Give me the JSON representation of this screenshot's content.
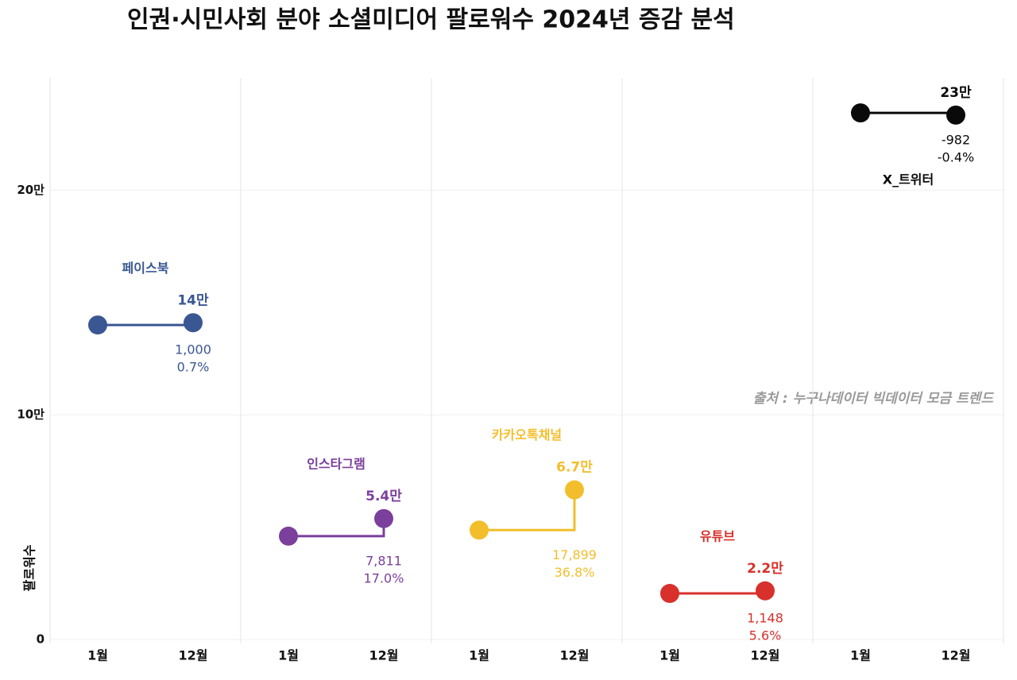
{
  "chart_data": {
    "type": "dumbbell-step",
    "title": "인권·시민사회 분야 소셜미디어 팔로워수 2024년 증감 분석",
    "source": "출처 : 누구나데이터 빅데이터 모금 트렌드",
    "ylabel": "팔로워수",
    "categories": [
      "1월",
      "12월"
    ],
    "ylim": [
      0,
      250000
    ],
    "yticks": [
      0,
      {
        "value": 100000,
        "label": "10만"
      },
      {
        "value": 200000,
        "label": "20만"
      }
    ],
    "grid": true,
    "series": [
      {
        "name": "페이스북",
        "color": "#3a5793",
        "values": [
          140000,
          141000
        ],
        "value_labels": [
          null,
          "14만"
        ],
        "annotations": [
          "1,000",
          "0.7%"
        ]
      },
      {
        "name": "인스타그램",
        "color": "#7b3f9c",
        "values": [
          46000,
          53811
        ],
        "value_labels": [
          null,
          "5.4만"
        ],
        "annotations": [
          "7,811",
          "17.0%"
        ]
      },
      {
        "name": "카카오톡채널",
        "color": "#f3be2c",
        "values": [
          48700,
          66599
        ],
        "value_labels": [
          null,
          "6.7만"
        ],
        "annotations": [
          "17,899",
          "36.8%"
        ]
      },
      {
        "name": "유튜브",
        "color": "#d8302b",
        "values": [
          20500,
          21648
        ],
        "value_labels": [
          null,
          "2.2만"
        ],
        "annotations": [
          "1,148",
          "5.6%"
        ]
      },
      {
        "name": "X_트위터",
        "color": "#0a0a0a",
        "values": [
          234400,
          233418
        ],
        "value_labels": [
          null,
          "23만"
        ],
        "annotations": [
          "-982",
          "-0.4%"
        ]
      }
    ]
  }
}
